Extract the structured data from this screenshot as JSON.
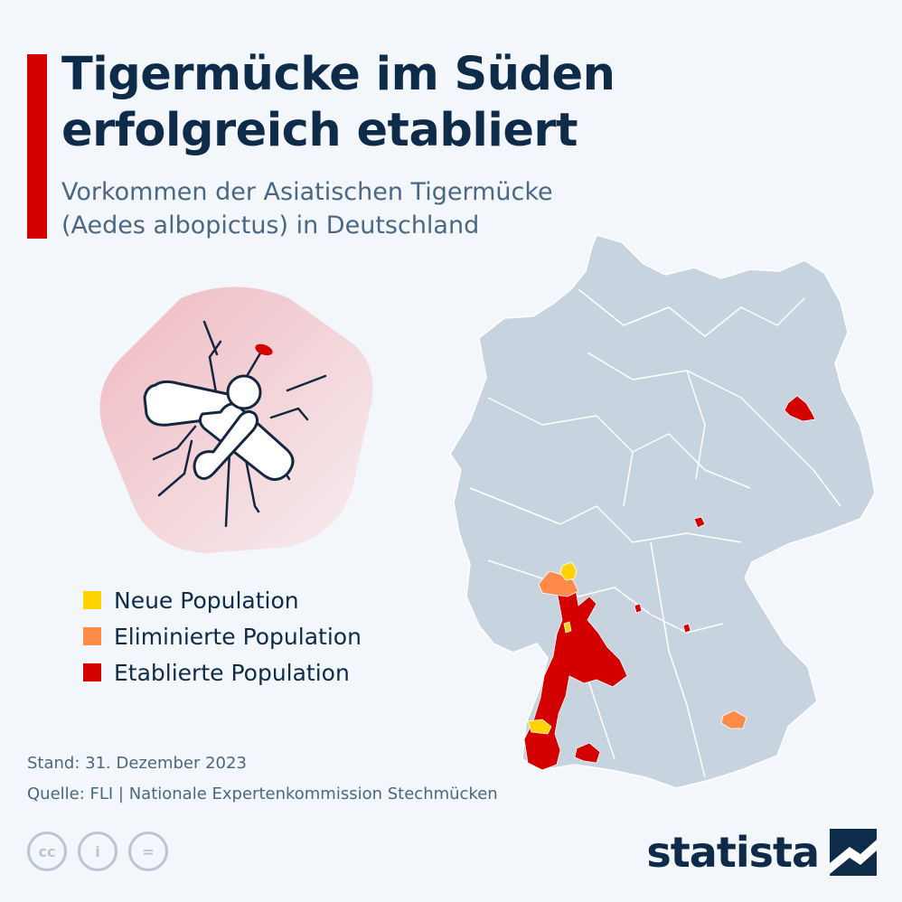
{
  "title_line1": "Tigermücke im Süden",
  "title_line2": "erfolgreich etabliert",
  "subtitle_line1": "Vorkommen der Asiatischen Tigermücke",
  "subtitle_line2": "(Aedes albopictus) in Deutschland",
  "legend": [
    {
      "label": "Neue Population",
      "color": "#ffd400"
    },
    {
      "label": "Eliminierte Population",
      "color": "#ff8a4a"
    },
    {
      "label": "Etablierte Population",
      "color": "#d40000"
    }
  ],
  "colors": {
    "map_fill": "#c7d3de",
    "map_border": "#ffffff",
    "neue": "#ffd400",
    "eliminierte": "#ff8a4a",
    "etablierte": "#d40000",
    "accent": "#d40000",
    "text_dark": "#0e2b4a"
  },
  "stand": "Stand: 31. Dezember 2023",
  "quelle": "Quelle: FLI | Nationale Expertenkommission Stechmücken",
  "brand": "statista",
  "license_icons": [
    {
      "icon": "cc-icon",
      "glyph": "cc"
    },
    {
      "icon": "person-icon",
      "glyph": "i"
    },
    {
      "icon": "equals-icon",
      "glyph": "="
    }
  ]
}
